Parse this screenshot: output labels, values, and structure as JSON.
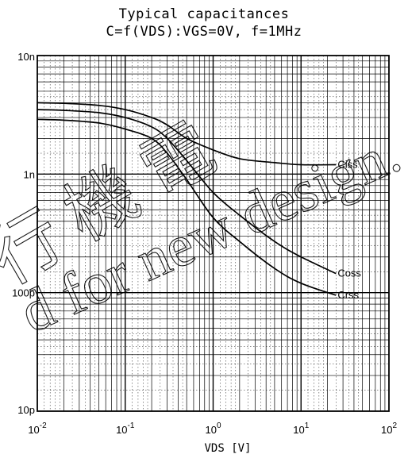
{
  "chart_data": {
    "type": "line",
    "title": "Typical capacitances",
    "subtitle": "C=f(VDS):VGS=0V, f=1MHz",
    "xlabel": "VDS [V]",
    "ylabel": "",
    "x_scale": "log",
    "y_scale": "log",
    "xlim": [
      0.01,
      100
    ],
    "ylim": [
      1e-11,
      1e-08
    ],
    "grid": true,
    "x_tick_labels": [
      {
        "base": "10",
        "exp": "-2",
        "value": 0.01
      },
      {
        "base": "10",
        "exp": "-1",
        "value": 0.1
      },
      {
        "base": "10",
        "exp": "0",
        "value": 1
      },
      {
        "base": "10",
        "exp": "1",
        "value": 10
      },
      {
        "base": "10",
        "exp": "2",
        "value": 100
      }
    ],
    "y_tick_labels": [
      {
        "label": "10p",
        "value": 1e-11
      },
      {
        "label": "100p",
        "value": 1e-10
      },
      {
        "label": "1n",
        "value": 1e-09
      },
      {
        "label": "10n",
        "value": 1e-08
      }
    ],
    "series": [
      {
        "name": "Ciss",
        "x": [
          0.01,
          0.02,
          0.05,
          0.1,
          0.2,
          0.3,
          0.5,
          1,
          2,
          5,
          10,
          25
        ],
        "y": [
          4e-09,
          3.95e-09,
          3.8e-09,
          3.5e-09,
          3e-09,
          2.6e-09,
          2e-09,
          1.6e-09,
          1.35e-09,
          1.25e-09,
          1.2e-09,
          1.2e-09
        ]
      },
      {
        "name": "Coss",
        "x": [
          0.01,
          0.02,
          0.05,
          0.1,
          0.2,
          0.3,
          0.5,
          1,
          2,
          5,
          10,
          25
        ],
        "y": [
          3.5e-09,
          3.45e-09,
          3.3e-09,
          3e-09,
          2.5e-09,
          2e-09,
          1.3e-09,
          7e-10,
          4.5e-10,
          2.7e-10,
          2e-10,
          1.45e-10
        ]
      },
      {
        "name": "Crss",
        "x": [
          0.01,
          0.02,
          0.05,
          0.1,
          0.2,
          0.3,
          0.5,
          1,
          2,
          5,
          10,
          25
        ],
        "y": [
          2.9e-09,
          2.85e-09,
          2.7e-09,
          2.4e-09,
          2e-09,
          1.5e-09,
          9e-10,
          4.3e-10,
          2.7e-10,
          1.6e-10,
          1.2e-10,
          9.5e-11
        ]
      }
    ]
  },
  "watermark": {
    "cjk_glyphs": "行 機 電",
    "latin_line": "d for new design."
  }
}
